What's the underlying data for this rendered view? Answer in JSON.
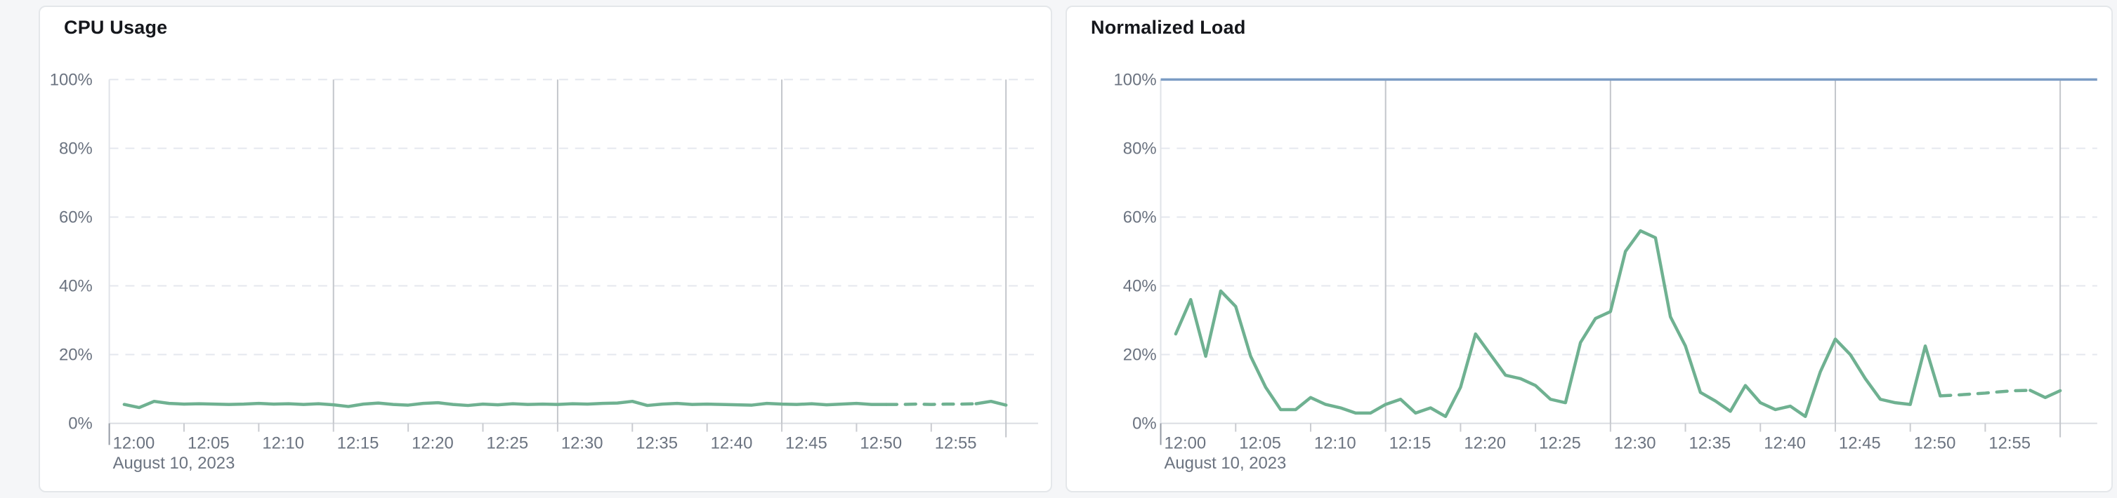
{
  "page": {
    "background_color": "#f5f6f8",
    "card_background": "#ffffff",
    "card_border_color": "#e4e7ea"
  },
  "chart_data": [
    {
      "type": "line",
      "title": "CPU Usage",
      "ylim": [
        0,
        100
      ],
      "y_tick_labels": [
        "0%",
        "20%",
        "40%",
        "60%",
        "80%",
        "100%"
      ],
      "x_tick_labels": [
        "12:00",
        "12:05",
        "12:10",
        "12:15",
        "12:20",
        "12:25",
        "12:30",
        "12:35",
        "12:40",
        "12:45",
        "12:50",
        "12:55"
      ],
      "x_axis_date_label": "August 10, 2023",
      "x_start": "12:01",
      "x_end": "13:00",
      "x_step_minutes": 1,
      "grid": {
        "horizontal": "dashed every 20%",
        "vertical": "solid at 12:15, 12:30, 12:45 and chart end"
      },
      "legend": "none",
      "series": [
        {
          "name": "cpu-usage-percent",
          "color": "#6fb191",
          "dashed_from": "12:52",
          "dashed_to": "12:58",
          "values": [
            5.5,
            4.6,
            6.4,
            5.8,
            5.6,
            5.7,
            5.6,
            5.5,
            5.6,
            5.8,
            5.6,
            5.7,
            5.5,
            5.7,
            5.4,
            4.9,
            5.6,
            5.9,
            5.5,
            5.3,
            5.8,
            6.0,
            5.5,
            5.2,
            5.6,
            5.4,
            5.7,
            5.5,
            5.6,
            5.5,
            5.7,
            5.6,
            5.8,
            5.9,
            6.4,
            5.2,
            5.6,
            5.8,
            5.5,
            5.6,
            5.5,
            5.4,
            5.3,
            5.8,
            5.6,
            5.5,
            5.7,
            5.4,
            5.6,
            5.8,
            5.5,
            5.5,
            5.5,
            5.6,
            5.5,
            5.6,
            5.6,
            5.7,
            6.4,
            5.3
          ]
        }
      ]
    },
    {
      "type": "line",
      "title": "Normalized Load",
      "ylim": [
        0,
        100
      ],
      "y_tick_labels": [
        "0%",
        "20%",
        "40%",
        "60%",
        "80%",
        "100%"
      ],
      "x_tick_labels": [
        "12:00",
        "12:05",
        "12:10",
        "12:15",
        "12:20",
        "12:25",
        "12:30",
        "12:35",
        "12:40",
        "12:45",
        "12:50",
        "12:55"
      ],
      "x_axis_date_label": "August 10, 2023",
      "x_start": "12:01",
      "x_end": "13:00",
      "x_step_minutes": 1,
      "grid": {
        "horizontal": "dashed every 20%",
        "vertical": "solid at 12:15, 12:30, 12:45 and chart end"
      },
      "legend": "none",
      "reference_line": {
        "value": 100,
        "color": "#7b9cc4"
      },
      "series": [
        {
          "name": "normalized-load-percent",
          "color": "#6fb191",
          "dashed_from": "12:52",
          "dashed_to": "12:58",
          "values": [
            26,
            36,
            19.5,
            38.5,
            34,
            19.5,
            10.5,
            4,
            4,
            7.5,
            5.5,
            4.5,
            3,
            3,
            5.5,
            7,
            3,
            4.5,
            2,
            10.5,
            26,
            20,
            14,
            13,
            11,
            7,
            6,
            23.5,
            30.5,
            32.5,
            50,
            56,
            54,
            31,
            22.5,
            9,
            6.5,
            3.5,
            11,
            6,
            4,
            5,
            2,
            15,
            24.5,
            20,
            13,
            7,
            6,
            5.5,
            22.5,
            8,
            8.2,
            8.5,
            8.8,
            9.2,
            9.5,
            9.6,
            7.5,
            9.5
          ]
        }
      ]
    }
  ]
}
